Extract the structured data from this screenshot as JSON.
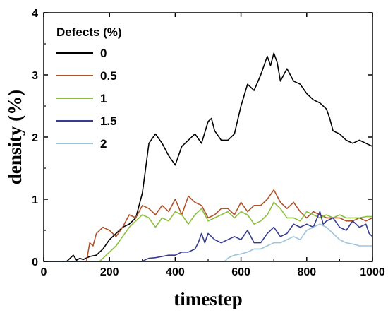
{
  "chart_data": {
    "type": "line",
    "xlabel": "timestep",
    "ylabel": "density (%)",
    "xlim": [
      0,
      1000
    ],
    "ylim": [
      0,
      4
    ],
    "x_ticks": [
      "0",
      "200",
      "400",
      "600",
      "800",
      "1000"
    ],
    "y_ticks": [
      "0",
      "1",
      "2",
      "3",
      "4"
    ],
    "grid": false,
    "legend": {
      "title": "Defects (%)",
      "placement": "top-left"
    },
    "series": [
      {
        "name": "0",
        "color": "#000000",
        "x": [
          0,
          70,
          80,
          90,
          100,
          110,
          120,
          140,
          160,
          180,
          200,
          220,
          240,
          260,
          280,
          300,
          310,
          320,
          340,
          360,
          380,
          400,
          420,
          440,
          460,
          480,
          500,
          510,
          520,
          540,
          560,
          580,
          600,
          620,
          640,
          660,
          680,
          690,
          700,
          710,
          720,
          740,
          760,
          780,
          800,
          820,
          840,
          860,
          870,
          880,
          900,
          920,
          940,
          960,
          980,
          1000
        ],
        "y": [
          0,
          0,
          0.05,
          0.1,
          0.02,
          0.05,
          0.03,
          0.08,
          0.1,
          0.2,
          0.35,
          0.45,
          0.55,
          0.6,
          0.7,
          1.1,
          1.5,
          1.9,
          2.05,
          1.9,
          1.7,
          1.55,
          1.85,
          1.95,
          2.05,
          1.9,
          2.25,
          2.3,
          2.1,
          1.95,
          1.95,
          2.05,
          2.5,
          2.85,
          2.75,
          3.0,
          3.3,
          3.15,
          3.35,
          3.2,
          2.9,
          3.1,
          2.9,
          2.85,
          2.7,
          2.6,
          2.55,
          2.45,
          2.3,
          2.1,
          2.05,
          1.95,
          1.9,
          1.95,
          1.9,
          1.85
        ]
      },
      {
        "name": "0.5",
        "color": "#b0532c",
        "x": [
          0,
          130,
          140,
          150,
          160,
          180,
          200,
          220,
          240,
          260,
          280,
          300,
          320,
          340,
          360,
          380,
          400,
          420,
          440,
          460,
          480,
          500,
          520,
          540,
          560,
          580,
          600,
          620,
          640,
          660,
          680,
          700,
          720,
          740,
          760,
          780,
          800,
          820,
          840,
          860,
          880,
          900,
          920,
          940,
          960,
          980,
          1000
        ],
        "y": [
          0,
          0,
          0.3,
          0.25,
          0.45,
          0.55,
          0.5,
          0.4,
          0.55,
          0.75,
          0.7,
          0.9,
          0.85,
          0.75,
          0.9,
          0.8,
          1.0,
          0.75,
          1.05,
          0.95,
          0.9,
          0.7,
          0.75,
          0.85,
          0.85,
          0.75,
          0.95,
          0.8,
          0.9,
          0.9,
          1.0,
          1.15,
          0.95,
          0.85,
          0.95,
          0.8,
          0.7,
          0.8,
          0.75,
          0.7,
          0.7,
          0.7,
          0.65,
          0.65,
          0.7,
          0.65,
          0.7
        ]
      },
      {
        "name": "1",
        "color": "#8cbf3f",
        "x": [
          0,
          170,
          180,
          190,
          200,
          220,
          240,
          260,
          280,
          300,
          320,
          340,
          360,
          380,
          400,
          420,
          440,
          460,
          480,
          500,
          520,
          540,
          560,
          580,
          600,
          620,
          640,
          660,
          680,
          700,
          720,
          740,
          760,
          780,
          800,
          820,
          840,
          860,
          880,
          900,
          920,
          940,
          960,
          980,
          1000
        ],
        "y": [
          0,
          0,
          0.05,
          0.1,
          0.15,
          0.25,
          0.4,
          0.55,
          0.65,
          0.75,
          0.7,
          0.55,
          0.7,
          0.65,
          0.8,
          0.75,
          0.6,
          0.75,
          0.85,
          0.65,
          0.7,
          0.75,
          0.8,
          0.7,
          0.8,
          0.75,
          0.6,
          0.65,
          0.75,
          0.95,
          0.85,
          0.7,
          0.7,
          0.65,
          0.8,
          0.75,
          0.7,
          0.75,
          0.7,
          0.75,
          0.7,
          0.7,
          0.7,
          0.72,
          0.72
        ]
      },
      {
        "name": "1.5",
        "color": "#363c8f",
        "x": [
          0,
          300,
          310,
          320,
          340,
          360,
          380,
          400,
          420,
          440,
          460,
          470,
          480,
          490,
          500,
          510,
          520,
          540,
          560,
          580,
          600,
          620,
          640,
          660,
          680,
          700,
          720,
          740,
          760,
          780,
          800,
          820,
          840,
          850,
          860,
          880,
          900,
          920,
          940,
          960,
          980,
          990,
          1000
        ],
        "y": [
          0,
          0,
          0.03,
          0.05,
          0.06,
          0.08,
          0.1,
          0.1,
          0.15,
          0.15,
          0.2,
          0.3,
          0.45,
          0.3,
          0.45,
          0.4,
          0.35,
          0.3,
          0.35,
          0.4,
          0.35,
          0.5,
          0.3,
          0.3,
          0.45,
          0.55,
          0.4,
          0.45,
          0.6,
          0.55,
          0.6,
          0.55,
          0.8,
          0.6,
          0.65,
          0.7,
          0.55,
          0.5,
          0.65,
          0.55,
          0.6,
          0.45,
          0.4
        ]
      },
      {
        "name": "2",
        "color": "#9ec4dc",
        "x": [
          0,
          550,
          560,
          570,
          580,
          600,
          620,
          640,
          660,
          680,
          700,
          720,
          740,
          760,
          780,
          800,
          820,
          840,
          860,
          880,
          900,
          920,
          940,
          960,
          980,
          1000
        ],
        "y": [
          0,
          0,
          0.05,
          0.08,
          0.1,
          0.12,
          0.15,
          0.2,
          0.2,
          0.25,
          0.3,
          0.3,
          0.35,
          0.4,
          0.35,
          0.5,
          0.55,
          0.6,
          0.55,
          0.45,
          0.35,
          0.3,
          0.28,
          0.25,
          0.25,
          0.25
        ]
      }
    ]
  }
}
